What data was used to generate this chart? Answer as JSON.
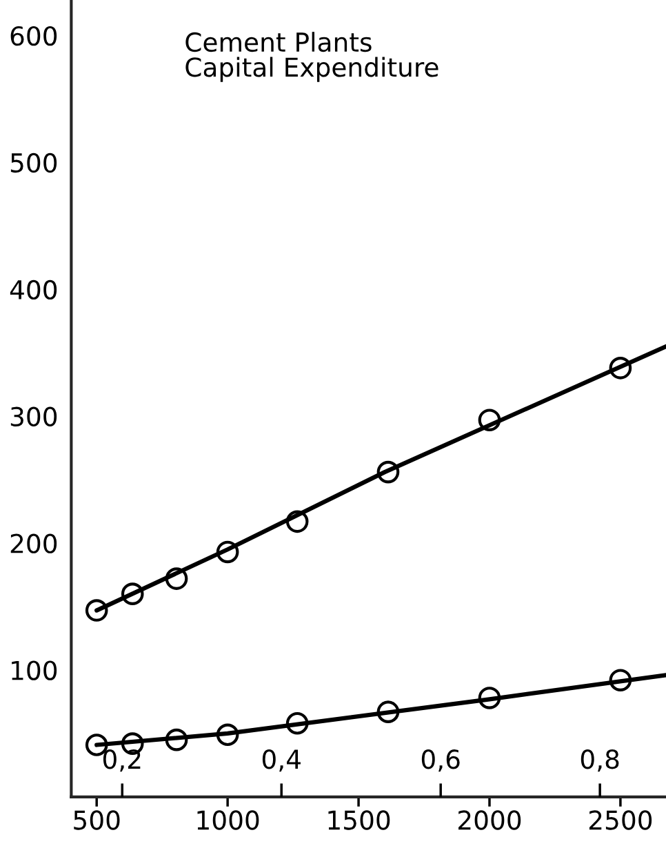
{
  "chart_data": {
    "type": "scatter",
    "title": "Cement Plants\nCapital Expenditure",
    "xlim": [
      403,
      2674
    ],
    "xticks": [
      500,
      1000,
      1500,
      2000,
      2500
    ],
    "x2lim": [
      0.136,
      0.883
    ],
    "x2ticks": [
      {
        "value": 0.2,
        "label": "0,2"
      },
      {
        "value": 0.4,
        "label": "0,4"
      },
      {
        "value": 0.6,
        "label": "0,6"
      },
      {
        "value": 0.8,
        "label": "0,8"
      }
    ],
    "ylim": [
      0,
      628
    ],
    "yticks": [
      100,
      200,
      300,
      400,
      500,
      600
    ],
    "marker": "circle",
    "grid": false,
    "legend": false,
    "series": [
      {
        "color": "#000000",
        "x": [
          500,
          637,
          805,
          1000,
          1266,
          1613,
          2000,
          2500
        ],
        "values": [
          147,
          160,
          172,
          193,
          217,
          256,
          297,
          338
        ]
      },
      {
        "color": "#000000",
        "x": [
          500,
          637,
          805,
          1000,
          1266,
          1613,
          2000,
          2500
        ],
        "values": [
          41,
          42,
          45,
          49,
          58,
          67,
          78,
          92
        ]
      },
      {
        "type": "line",
        "color": "#000000",
        "marker": "none",
        "x": [
          500,
          1000,
          1600,
          2674
        ],
        "values": [
          147,
          195,
          256,
          355
        ]
      },
      {
        "type": "line",
        "color": "#000000",
        "marker": "none",
        "x": [
          500,
          1000,
          2000,
          2674
        ],
        "values": [
          41,
          50,
          77,
          96
        ]
      }
    ]
  }
}
